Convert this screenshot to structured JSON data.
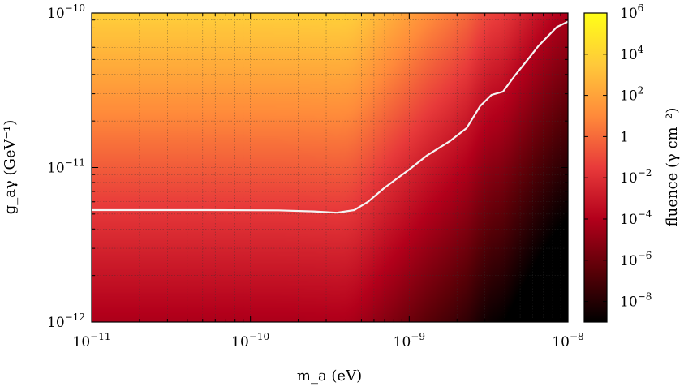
{
  "chart_data": {
    "type": "heatmap",
    "title": "",
    "xlabel": "m_a (eV)",
    "ylabel": "g_aγ (GeV⁻¹)",
    "x_scale": "log",
    "y_scale": "log",
    "xlim": [
      1e-11,
      1e-08
    ],
    "ylim": [
      1e-12,
      1e-10
    ],
    "grid": true,
    "x_ticks": [
      {
        "value": 1e-11,
        "label": "10⁻¹¹"
      },
      {
        "value": 1e-10,
        "label": "10⁻¹⁰"
      },
      {
        "value": 1e-09,
        "label": "10⁻⁹"
      },
      {
        "value": 1e-08,
        "label": "10⁻⁸"
      }
    ],
    "y_ticks": [
      {
        "value": 1e-12,
        "label": "10⁻¹²"
      },
      {
        "value": 1e-11,
        "label": "10⁻¹¹"
      },
      {
        "value": 1e-10,
        "label": "10⁻¹⁰"
      }
    ],
    "colorbar": {
      "label": "fluence (γ cm⁻²)",
      "scale": "log",
      "range": [
        1e-09,
        1000000.0
      ],
      "colormap": [
        "#000000",
        "#5a0007",
        "#b3001b",
        "#e83a3a",
        "#ff8a3a",
        "#ffc93a",
        "#ffff17"
      ],
      "ticks": [
        {
          "value": 1000000.0,
          "label": "10⁶"
        },
        {
          "value": 10000.0,
          "label": "10⁴"
        },
        {
          "value": 100.0,
          "label": "10²"
        },
        {
          "value": 1,
          "label": "1"
        },
        {
          "value": 0.01,
          "label": "10⁻²"
        },
        {
          "value": 0.0001,
          "label": "10⁻⁴"
        },
        {
          "value": 1e-06,
          "label": "10⁻⁶"
        },
        {
          "value": 1e-08,
          "label": "10⁻⁸"
        }
      ]
    },
    "contour": {
      "color": "#f4f4f4",
      "points": [
        [
          1e-11,
          5.3e-12
        ],
        [
          5e-11,
          5.3e-12
        ],
        [
          1.5e-10,
          5.28e-12
        ],
        [
          2.5e-10,
          5.2e-12
        ],
        [
          3.5e-10,
          5.1e-12
        ],
        [
          4.5e-10,
          5.3e-12
        ],
        [
          5.5e-10,
          6e-12
        ],
        [
          7e-10,
          7.4e-12
        ],
        [
          1e-09,
          9.7e-12
        ],
        [
          1.3e-09,
          1.2e-11
        ],
        [
          1.8e-09,
          1.48e-11
        ],
        [
          2.3e-09,
          1.8e-11
        ],
        [
          2.8e-09,
          2.5e-11
        ],
        [
          3.3e-09,
          2.95e-11
        ],
        [
          3.9e-09,
          3.1e-11
        ],
        [
          4.6e-09,
          3.9e-11
        ],
        [
          5.5e-09,
          4.9e-11
        ],
        [
          6.5e-09,
          6.1e-11
        ],
        [
          7.5e-09,
          7.1e-11
        ],
        [
          8.5e-09,
          8.1e-11
        ],
        [
          1e-08,
          8.8e-11
        ]
      ]
    }
  }
}
